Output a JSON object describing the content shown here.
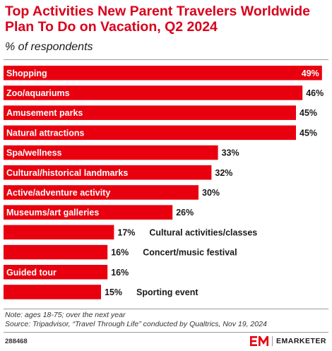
{
  "header": {
    "title": "Top Activities New Parent Travelers Worldwide Plan To Do on Vacation, Q2 2024",
    "subtitle": "% of respondents"
  },
  "chart_data": {
    "type": "bar",
    "orientation": "horizontal",
    "categories": [
      "Shopping",
      "Zoo/aquariums",
      "Amusement parks",
      "Natural attractions",
      "Spa/wellness",
      "Cultural/historical landmarks",
      "Active/adventure activity",
      "Museums/art galleries",
      "Cultural activities/classes",
      "Concert/music festival",
      "Guided tour",
      "Sporting event"
    ],
    "values": [
      49,
      46,
      45,
      45,
      33,
      32,
      30,
      26,
      17,
      16,
      16,
      15
    ],
    "value_labels": [
      "49%",
      "46%",
      "45%",
      "45%",
      "33%",
      "32%",
      "30%",
      "26%",
      "17%",
      "16%",
      "16%",
      "15%"
    ],
    "unit": "%",
    "bar_color": "#e8000f",
    "grid": false,
    "legend": "none"
  },
  "footer": {
    "note": "Note: ages 18-75; over the next year",
    "source": "Source: Tripadvisor, “Travel Through Life” conducted by Qualtrics, Nov 19, 2024",
    "chart_id": "288468",
    "brand": "EMARKETER",
    "logo_icon": "em-logo-icon",
    "brand_color": "#e8000f"
  }
}
